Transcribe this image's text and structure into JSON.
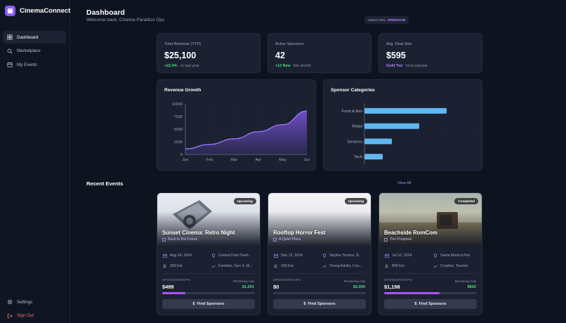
{
  "app": {
    "name": "CinemaConnect"
  },
  "sidebar": {
    "items": [
      {
        "label": "Dashboard",
        "icon": "dashboard-icon",
        "active": true
      },
      {
        "label": "Marketplace",
        "icon": "search-icon",
        "active": false
      },
      {
        "label": "My Events",
        "icon": "calendar-icon",
        "active": false
      }
    ],
    "bottom": [
      {
        "label": "Settings",
        "icon": "gear-icon"
      },
      {
        "label": "Sign Out",
        "icon": "sign-out-icon"
      }
    ]
  },
  "header": {
    "title": "Dashboard",
    "subtitle": "Welcome back, Cinema Paradiso Ops",
    "switch_label": "Switch View",
    "switch_role": "OPERATOR"
  },
  "stats": [
    {
      "label": "Total Revenue (YTD)",
      "value": "$25,100",
      "accent": "+22.4%",
      "accent_color": "#4ade80",
      "note": "vs last year"
    },
    {
      "label": "Active Sponsors",
      "value": "42",
      "accent": "+12 New",
      "accent_color": "#4ade80",
      "note": "this month"
    },
    {
      "label": "Avg. Deal Size",
      "value": "$595",
      "accent": "Gold Tier",
      "accent_color": "#c084fc",
      "note": "most popular"
    }
  ],
  "chart_data": [
    {
      "type": "area",
      "title": "Revenue Growth",
      "categories": [
        "Jan",
        "Feb",
        "Mar",
        "Apr",
        "May",
        "Jun"
      ],
      "values": [
        1100,
        2000,
        3100,
        4500,
        5900,
        8600
      ],
      "ylim": [
        0,
        10000
      ],
      "yticks": [
        "10000",
        "7500",
        "5000",
        "2500",
        "0"
      ],
      "color": "#8b5cf6"
    },
    {
      "type": "bar",
      "orientation": "horizontal",
      "title": "Sponsor Categories",
      "categories": [
        "Food & Bev",
        "Retail",
        "Services",
        "Tech"
      ],
      "values": [
        45,
        30,
        15,
        10
      ],
      "xlim": [
        0,
        60
      ],
      "color": "#60b8f0"
    }
  ],
  "events_section": {
    "title": "Recent Events",
    "view_all": "View All"
  },
  "events": [
    {
      "status": "Upcoming",
      "title": "Sunset Cinema: Retro Night",
      "film": "Back to the Future",
      "date": "Aug 24, 2024",
      "location": "Central Park Pavili...",
      "attendance": "350 Est.",
      "audience": "Families, Gen X, M...",
      "sponsorships_label": "SPONSORSHIPS",
      "sponsorships": "$499",
      "cap_label": "Remaining Cap",
      "cap": "$1,501",
      "progress": 0.25,
      "button": "Find Sponsors"
    },
    {
      "status": "Upcoming",
      "title": "Rooftop Horror Fest",
      "film": "A Quiet Place",
      "date": "Sep 12, 2024",
      "location": "Skyline Terrace, B...",
      "attendance": "150 Est.",
      "audience": "Young Adults, Cou...",
      "sponsorships_label": "SPONSORSHIPS",
      "sponsorships": "$0",
      "cap_label": "Remaining Cap",
      "cap": "$2,000",
      "progress": 0.0,
      "button": "Find Sponsors"
    },
    {
      "status": "Completed",
      "title": "Beachside RomCom",
      "film": "The Proposal",
      "date": "Jul 10, 2024",
      "location": "Santa Monica Pier",
      "attendance": "800 Est.",
      "audience": "Couples, Tourists",
      "sponsorships_label": "SPONSORSHIPS",
      "sponsorships": "$1,198",
      "cap_label": "Remaining Cap",
      "cap": "$802",
      "progress": 0.6,
      "button": "Find Sponsors"
    }
  ]
}
